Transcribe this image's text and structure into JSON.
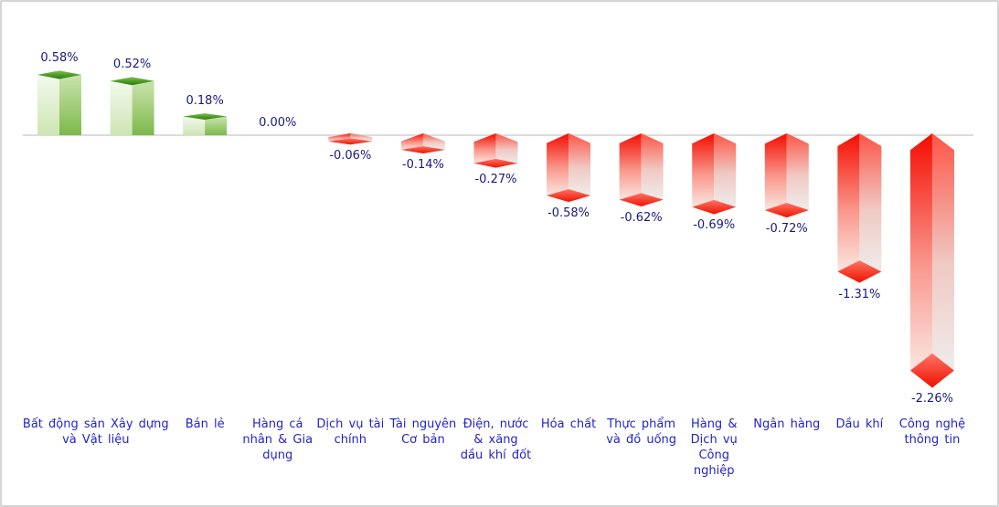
{
  "chart_data": {
    "type": "bar",
    "title": "",
    "unit": "%",
    "orientation": "vertical",
    "grid": false,
    "legend": false,
    "zero_line": true,
    "ylim": [
      -2.6,
      0.9
    ],
    "columns": [
      {
        "value": 0.58,
        "display": "0.58%"
      },
      {
        "value": 0.52,
        "display": "0.52%"
      },
      {
        "value": 0.18,
        "display": "0.18%"
      },
      {
        "value": 0.0,
        "display": "0.00%"
      },
      {
        "value": -0.06,
        "display": "-0.06%"
      },
      {
        "value": -0.14,
        "display": "-0.14%"
      },
      {
        "value": -0.27,
        "display": "-0.27%"
      },
      {
        "value": -0.58,
        "display": "-0.58%"
      },
      {
        "value": -0.62,
        "display": "-0.62%"
      },
      {
        "value": -0.69,
        "display": "-0.69%"
      },
      {
        "value": -0.72,
        "display": "-0.72%"
      },
      {
        "value": -1.31,
        "display": "-1.31%"
      },
      {
        "value": -2.26,
        "display": "-2.26%"
      }
    ],
    "x_axis_labels": [
      {
        "text": "Bất động sản Xây dựng và Vật liệu",
        "span": 2
      },
      {
        "text": "Bán lẻ",
        "span": 1
      },
      {
        "text": "Hàng cá nhân & Gia dụng",
        "span": 1
      },
      {
        "text": "Dịch vụ tài chính",
        "span": 1
      },
      {
        "text": "Tài nguyên Cơ bản",
        "span": 1
      },
      {
        "text": "Điện, nước & xăng dầu khí đốt",
        "span": 1
      },
      {
        "text": "Hóa chất",
        "span": 1
      },
      {
        "text": "Thực phẩm và đồ uống",
        "span": 1
      },
      {
        "text": "Hàng & Dịch vụ Công nghiệp",
        "span": 1
      },
      {
        "text": "Ngân hàng",
        "span": 1
      },
      {
        "text": "Dầu khí",
        "span": 1
      },
      {
        "text": "Công nghệ thông tin",
        "span": 1
      }
    ],
    "colors": {
      "positive": "#7cb94b",
      "positive_dark": "#2e7a10",
      "positive_light": "#f3f9ee",
      "negative": "#f50c00",
      "negative_light": "#fd5546",
      "negative_diamond": "#ee1200",
      "value_label": "#1a1a7e",
      "category_label": "#2323cc",
      "axis_line": "#dcdcdc",
      "frame_border": "#d5d5d5",
      "background": "#ffffff"
    }
  }
}
